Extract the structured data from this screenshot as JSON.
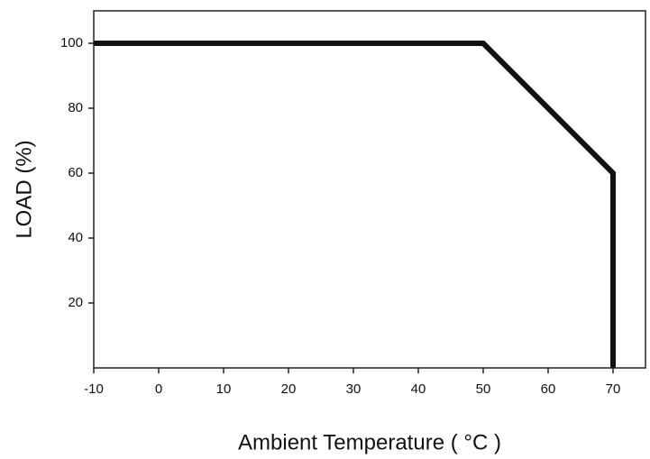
{
  "chart_data": {
    "type": "line",
    "x_label": "Ambient Temperature ( °C )",
    "y_label": "LOAD (%)",
    "x": [
      -10,
      50,
      70,
      70
    ],
    "series": [
      {
        "name": "LOAD",
        "color": "#111111",
        "values": [
          100,
          100,
          60,
          0
        ]
      }
    ],
    "xlim": [
      -10,
      75
    ],
    "xticks": [
      -10,
      0,
      10,
      20,
      30,
      40,
      50,
      60,
      70
    ],
    "ylim": [
      0,
      110
    ],
    "yticks": [
      20,
      40,
      60,
      80,
      100
    ],
    "grid": false
  }
}
